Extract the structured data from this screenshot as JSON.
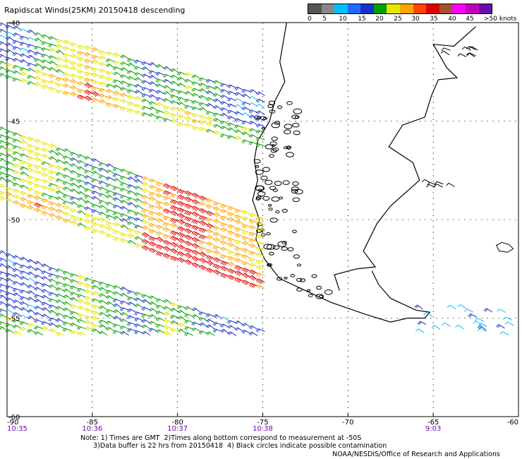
{
  "title": "Rapidscat Winds(25KM)  20150418  descending",
  "legend": {
    "colors": [
      "#555555",
      "#888888",
      "#00bfff",
      "#1e6cff",
      "#1a30c8",
      "#00a000",
      "#e6e600",
      "#ffa500",
      "#ff4500",
      "#e00000",
      "#a0522d",
      "#ff00ff",
      "#c000c0",
      "#6a0dad"
    ],
    "labels": [
      "0",
      "5",
      "10",
      "15",
      "20",
      "25",
      "30",
      "35",
      "40",
      "45",
      ">50 knots"
    ]
  },
  "axes": {
    "lat_labels": [
      "-40",
      "-45",
      "-50",
      "-55",
      "-60"
    ],
    "lon_labels": [
      "-90",
      "-85",
      "-80",
      "-75",
      "-70",
      "-65",
      "-60"
    ],
    "time_labels": [
      {
        "lon": "-90",
        "text": "10:35"
      },
      {
        "lon": "-85",
        "text": "10:36"
      },
      {
        "lon": "-80",
        "text": "10:37"
      },
      {
        "lon": "-75",
        "text": "10:38"
      },
      {
        "lon": "-65",
        "text": "9:03"
      }
    ]
  },
  "notes": {
    "line1": "Note: 1) Times are GMT  2)Times along bottom correspond to measurement at -50S",
    "line2": "      3)Data buffer is 22 hrs from 20150418  4) Black circles indicate possible contamination"
  },
  "credit": "NOAA/NESDIS/Office of Research and Applications"
}
